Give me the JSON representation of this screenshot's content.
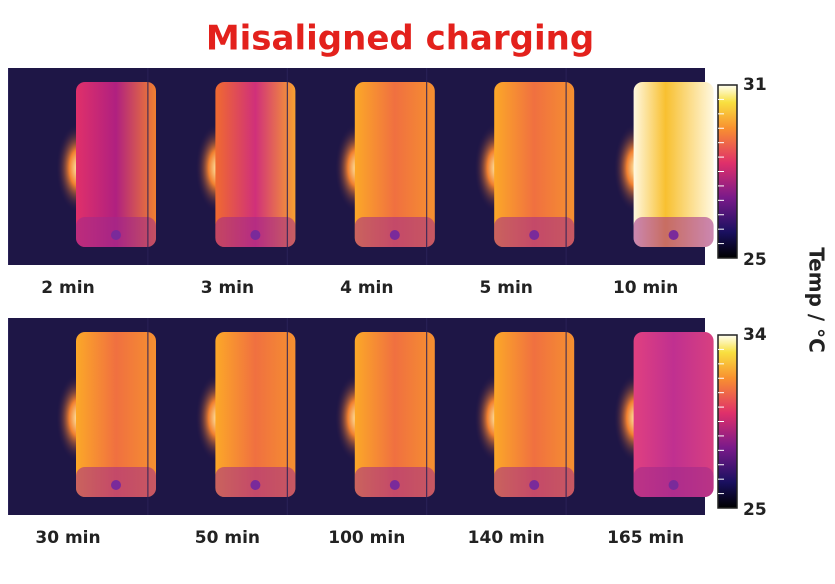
{
  "title": "Misaligned charging",
  "rows": [
    {
      "labels": [
        "2 min",
        "3 min",
        "4 min",
        "5 min",
        "10 min"
      ],
      "colorbar": {
        "max": 31,
        "min": 25
      }
    },
    {
      "labels": [
        "30 min",
        "50 min",
        "100 min",
        "140 min",
        "165 min"
      ],
      "colorbar": {
        "max": 34,
        "min": 25
      }
    }
  ],
  "axis_label": "Temp / °C"
}
